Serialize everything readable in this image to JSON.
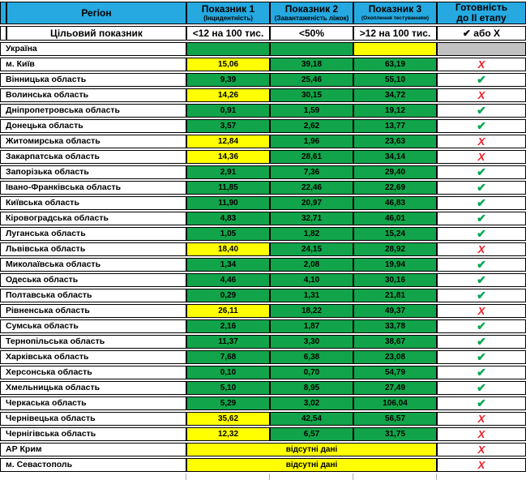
{
  "palette": {
    "header_blue": "#25a9e0",
    "cell_green": "#12a44a",
    "cell_yellow": "#ffff00",
    "cell_gray": "#c2c2c2",
    "check_green": "#00a651",
    "cross_red": "#ee1c25"
  },
  "icons": {
    "check": "✔",
    "cross": "Х"
  },
  "header": {
    "region_label": "Регіон",
    "indicator1_title": "Показник 1",
    "indicator1_subtitle": "(Інцидентність)",
    "indicator2_title": "Показник 2",
    "indicator2_subtitle": "(Завантаженість ліжок)",
    "indicator3_title": "Показник 3",
    "indicator3_subtitle": "(Охоплення тестуванням)",
    "readiness_line1": "Готовність",
    "readiness_line2": "до ІІ етапу"
  },
  "target_row": {
    "label": "Цільовий показник",
    "t1": "<12 на 100 тис.",
    "t2": "<50%",
    "t3": ">12 на 100 тис.",
    "t4": "✔ або Х"
  },
  "no_data_label": "відсутні дані",
  "rows": [
    {
      "region": "Україна",
      "cells": [
        {
          "v": "",
          "bg": "green"
        },
        {
          "v": "",
          "bg": "green"
        },
        {
          "v": "",
          "bg": "yellow"
        }
      ],
      "ready": "gray"
    },
    {
      "region": "м. Київ",
      "cells": [
        {
          "v": "15,06",
          "bg": "yellow"
        },
        {
          "v": "39,18",
          "bg": "green"
        },
        {
          "v": "63,19",
          "bg": "green"
        }
      ],
      "ready": "cross"
    },
    {
      "region": "Вінницька область",
      "cells": [
        {
          "v": "9,39",
          "bg": "green"
        },
        {
          "v": "25,46",
          "bg": "green"
        },
        {
          "v": "55,10",
          "bg": "green"
        }
      ],
      "ready": "check"
    },
    {
      "region": "Волинська область",
      "cells": [
        {
          "v": "14,26",
          "bg": "yellow"
        },
        {
          "v": "30,15",
          "bg": "green"
        },
        {
          "v": "34,72",
          "bg": "green"
        }
      ],
      "ready": "cross"
    },
    {
      "region": "Дніпропетровська область",
      "cells": [
        {
          "v": "0,91",
          "bg": "green"
        },
        {
          "v": "1,59",
          "bg": "green"
        },
        {
          "v": "19,12",
          "bg": "green"
        }
      ],
      "ready": "check"
    },
    {
      "region": "Донецька область",
      "cells": [
        {
          "v": "3,57",
          "bg": "green"
        },
        {
          "v": "2,62",
          "bg": "green"
        },
        {
          "v": "13,77",
          "bg": "green"
        }
      ],
      "ready": "check"
    },
    {
      "region": "Житомирська область",
      "cells": [
        {
          "v": "12,84",
          "bg": "yellow"
        },
        {
          "v": "1,96",
          "bg": "green"
        },
        {
          "v": "23,63",
          "bg": "green"
        }
      ],
      "ready": "cross"
    },
    {
      "region": "Закарпатська область",
      "cells": [
        {
          "v": "14,36",
          "bg": "yellow"
        },
        {
          "v": "28,61",
          "bg": "green"
        },
        {
          "v": "34,14",
          "bg": "green"
        }
      ],
      "ready": "cross"
    },
    {
      "region": "Запорізька область",
      "cells": [
        {
          "v": "2,91",
          "bg": "green"
        },
        {
          "v": "7,36",
          "bg": "green"
        },
        {
          "v": "29,40",
          "bg": "green"
        }
      ],
      "ready": "check"
    },
    {
      "region": "Івано-Франківська область",
      "cells": [
        {
          "v": "11,85",
          "bg": "green"
        },
        {
          "v": "22,46",
          "bg": "green"
        },
        {
          "v": "22,69",
          "bg": "green"
        }
      ],
      "ready": "check"
    },
    {
      "region": "Київська область",
      "cells": [
        {
          "v": "11,90",
          "bg": "green"
        },
        {
          "v": "20,97",
          "bg": "green"
        },
        {
          "v": "46,83",
          "bg": "green"
        }
      ],
      "ready": "check"
    },
    {
      "region": "Кіровоградська область",
      "cells": [
        {
          "v": "4,83",
          "bg": "green"
        },
        {
          "v": "32,71",
          "bg": "green"
        },
        {
          "v": "46,01",
          "bg": "green"
        }
      ],
      "ready": "check"
    },
    {
      "region": "Луганська область",
      "cells": [
        {
          "v": "1,05",
          "bg": "green"
        },
        {
          "v": "1,82",
          "bg": "green"
        },
        {
          "v": "15,24",
          "bg": "green"
        }
      ],
      "ready": "check"
    },
    {
      "region": "Львівська область",
      "cells": [
        {
          "v": "18,40",
          "bg": "yellow"
        },
        {
          "v": "24,15",
          "bg": "green"
        },
        {
          "v": "28,92",
          "bg": "green"
        }
      ],
      "ready": "cross"
    },
    {
      "region": "Миколаївська область",
      "cells": [
        {
          "v": "1,34",
          "bg": "green"
        },
        {
          "v": "2,08",
          "bg": "green"
        },
        {
          "v": "19,94",
          "bg": "green"
        }
      ],
      "ready": "check"
    },
    {
      "region": "Одеська область",
      "cells": [
        {
          "v": "4,46",
          "bg": "green"
        },
        {
          "v": "4,10",
          "bg": "green"
        },
        {
          "v": "30,16",
          "bg": "green"
        }
      ],
      "ready": "check"
    },
    {
      "region": "Полтавська область",
      "cells": [
        {
          "v": "0,29",
          "bg": "green"
        },
        {
          "v": "1,31",
          "bg": "green"
        },
        {
          "v": "21,81",
          "bg": "green"
        }
      ],
      "ready": "check"
    },
    {
      "region": "Рівненська область",
      "cells": [
        {
          "v": "26,11",
          "bg": "yellow"
        },
        {
          "v": "18,22",
          "bg": "green"
        },
        {
          "v": "49,37",
          "bg": "green"
        }
      ],
      "ready": "cross"
    },
    {
      "region": "Сумська область",
      "cells": [
        {
          "v": "2,16",
          "bg": "green"
        },
        {
          "v": "1,87",
          "bg": "green"
        },
        {
          "v": "33,78",
          "bg": "green"
        }
      ],
      "ready": "check"
    },
    {
      "region": "Тернопільська область",
      "cells": [
        {
          "v": "11,37",
          "bg": "green"
        },
        {
          "v": "3,30",
          "bg": "green"
        },
        {
          "v": "38,67",
          "bg": "green"
        }
      ],
      "ready": "check"
    },
    {
      "region": "Харківська область",
      "cells": [
        {
          "v": "7,68",
          "bg": "green"
        },
        {
          "v": "6,38",
          "bg": "green"
        },
        {
          "v": "23,08",
          "bg": "green"
        }
      ],
      "ready": "check"
    },
    {
      "region": "Херсонська область",
      "cells": [
        {
          "v": "0,10",
          "bg": "green"
        },
        {
          "v": "0,70",
          "bg": "green"
        },
        {
          "v": "54,79",
          "bg": "green"
        }
      ],
      "ready": "check"
    },
    {
      "region": "Хмельницька область",
      "cells": [
        {
          "v": "5,10",
          "bg": "green"
        },
        {
          "v": "8,95",
          "bg": "green"
        },
        {
          "v": "27,49",
          "bg": "green"
        }
      ],
      "ready": "check"
    },
    {
      "region": "Черкаська область",
      "cells": [
        {
          "v": "5,29",
          "bg": "green"
        },
        {
          "v": "3,02",
          "bg": "green"
        },
        {
          "v": "106,04",
          "bg": "green"
        }
      ],
      "ready": "check"
    },
    {
      "region": "Чернівецька область",
      "cells": [
        {
          "v": "35,62",
          "bg": "yellow"
        },
        {
          "v": "42,54",
          "bg": "green"
        },
        {
          "v": "56,57",
          "bg": "green"
        }
      ],
      "ready": "cross"
    },
    {
      "region": "Чернігівська область",
      "cells": [
        {
          "v": "12,32",
          "bg": "yellow"
        },
        {
          "v": "6,57",
          "bg": "green"
        },
        {
          "v": "31,75",
          "bg": "green"
        }
      ],
      "ready": "cross"
    },
    {
      "region": "АР Крим",
      "merged": true,
      "ready": "cross"
    },
    {
      "region": "м. Севастополь",
      "merged": true,
      "ready": "cross"
    }
  ]
}
